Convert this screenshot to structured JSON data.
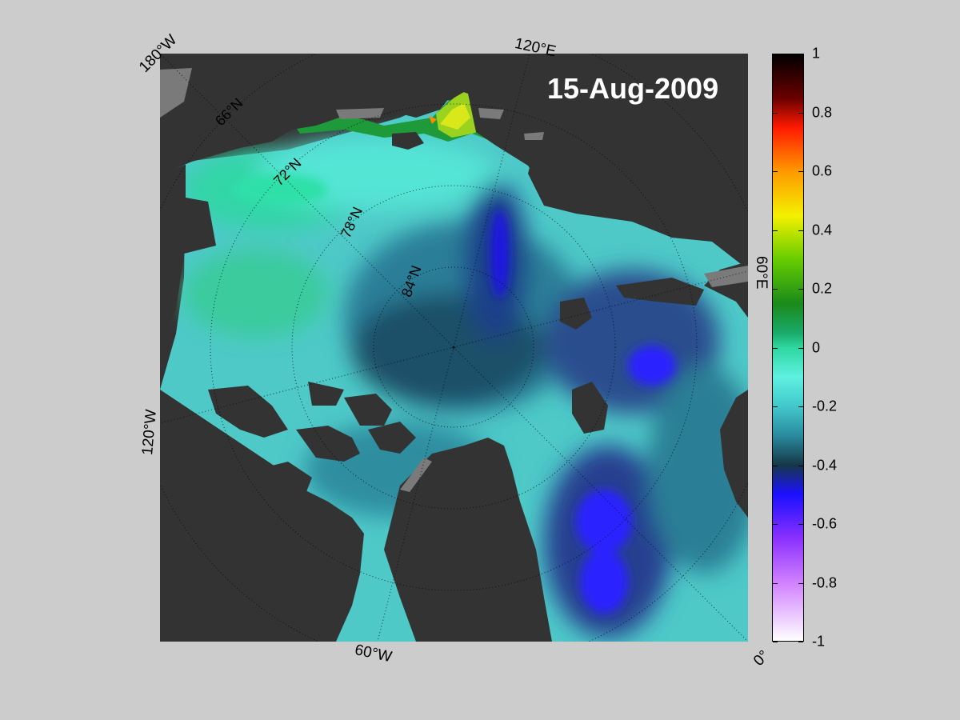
{
  "map": {
    "date": "15-Aug-2009",
    "colors": {
      "land": "#333333",
      "shelf_land": "#7a7a7a",
      "grid": "#000000"
    },
    "edge_labels": {
      "lon_180W": "180°W",
      "lon_120E": "120°E",
      "lon_60E": "60°E",
      "lon_120W": "120°W",
      "lon_60W": "60°W",
      "lon_0": "0°"
    },
    "lat_labels": [
      "66°N",
      "72°N",
      "78°N",
      "84°N"
    ]
  },
  "colorbar": {
    "min": -1,
    "max": 1,
    "ticks": [
      "1",
      "0.8",
      "0.6",
      "0.4",
      "0.2",
      "0",
      "-0.2",
      "-0.4",
      "-0.6",
      "-0.8",
      "-1"
    ],
    "stops": [
      {
        "value": 1,
        "color": "#000000"
      },
      {
        "value": 0.85,
        "color": "#6a0000"
      },
      {
        "value": 0.75,
        "color": "#ff1a00"
      },
      {
        "value": 0.6,
        "color": "#ff9a00"
      },
      {
        "value": 0.45,
        "color": "#f4f000"
      },
      {
        "value": 0.3,
        "color": "#66cc00"
      },
      {
        "value": 0.15,
        "color": "#1a8a1a"
      },
      {
        "value": 0.05,
        "color": "#1aaa6a"
      },
      {
        "value": 0,
        "color": "#2ed7a0"
      },
      {
        "value": -0.1,
        "color": "#5ef0e0"
      },
      {
        "value": -0.2,
        "color": "#42c8cc"
      },
      {
        "value": -0.3,
        "color": "#2a8a9e"
      },
      {
        "value": -0.4,
        "color": "#163848"
      },
      {
        "value": -0.5,
        "color": "#1a10ff"
      },
      {
        "value": -0.65,
        "color": "#8a30ff"
      },
      {
        "value": -0.8,
        "color": "#d080ff"
      },
      {
        "value": -1,
        "color": "#ffffff"
      }
    ]
  }
}
